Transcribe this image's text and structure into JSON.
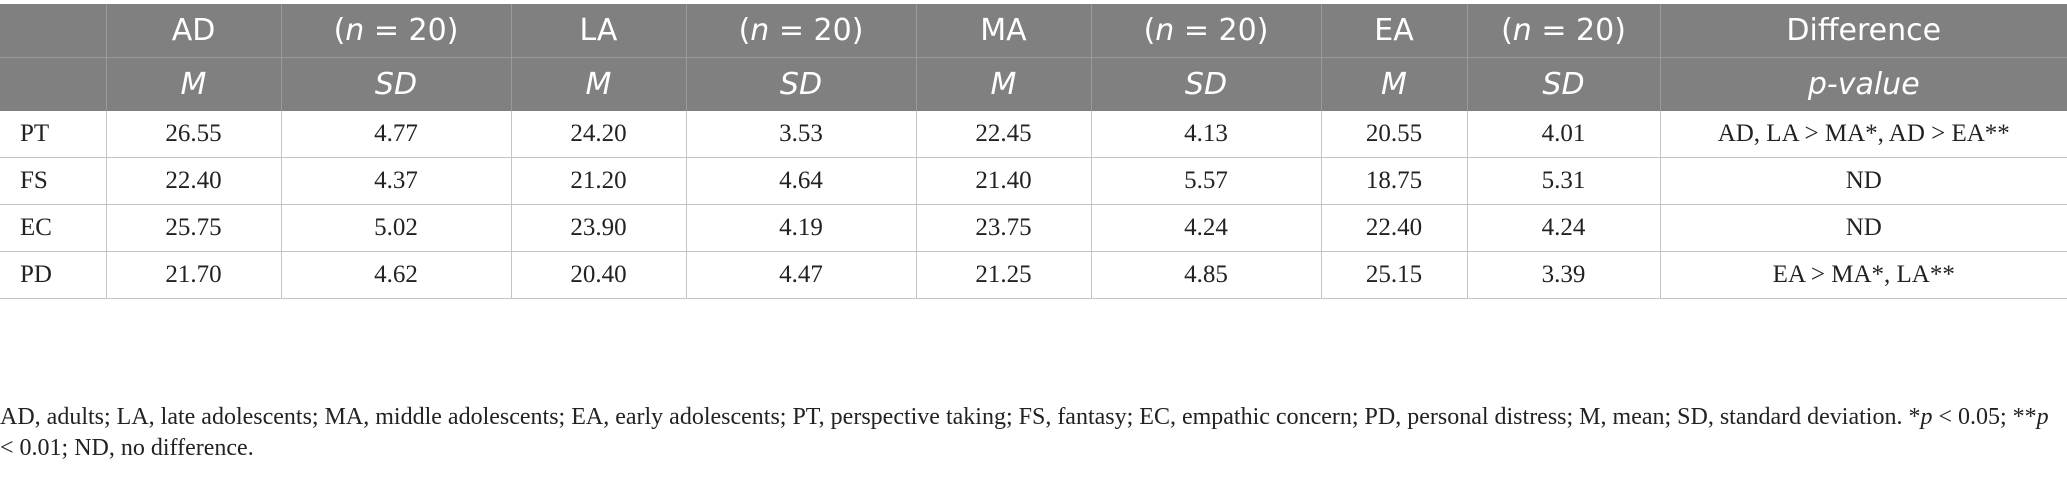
{
  "table": {
    "header_row1": [
      "",
      "AD",
      "(n = 20)",
      "LA",
      "(n = 20)",
      "MA",
      "(n = 20)",
      "EA",
      "(n = 20)",
      "Difference"
    ],
    "header_row2": [
      "",
      "M",
      "SD",
      "M",
      "SD",
      "M",
      "SD",
      "M",
      "SD",
      "p-value"
    ],
    "rows": [
      [
        "PT",
        "26.55",
        "4.77",
        "24.20",
        "3.53",
        "22.45",
        "4.13",
        "20.55",
        "4.01",
        "AD, LA > MA*, AD > EA**"
      ],
      [
        "FS",
        "22.40",
        "4.37",
        "21.20",
        "4.64",
        "21.40",
        "5.57",
        "18.75",
        "5.31",
        "ND"
      ],
      [
        "EC",
        "25.75",
        "5.02",
        "23.90",
        "4.19",
        "23.75",
        "4.24",
        "22.40",
        "4.24",
        "ND"
      ],
      [
        "PD",
        "21.70",
        "4.62",
        "20.40",
        "4.47",
        "21.25",
        "4.85",
        "25.15",
        "3.39",
        "EA > MA*, LA**"
      ]
    ]
  },
  "footnote": {
    "text1": "AD, adults; LA, late adolescents; MA, middle adolescents; EA, early adolescents; PT, perspective taking; FS, fantasy; EC, empathic concern; PD, personal distress; M, mean; SD, standard deviation. *",
    "p1": "p",
    "text2": " < 0.05; **",
    "p2": "p",
    "text3": " < 0.01; ND, no difference."
  },
  "colors": {
    "header_bg": "#808080",
    "header_text": "#ffffff",
    "rule": "#c4c4c4"
  }
}
